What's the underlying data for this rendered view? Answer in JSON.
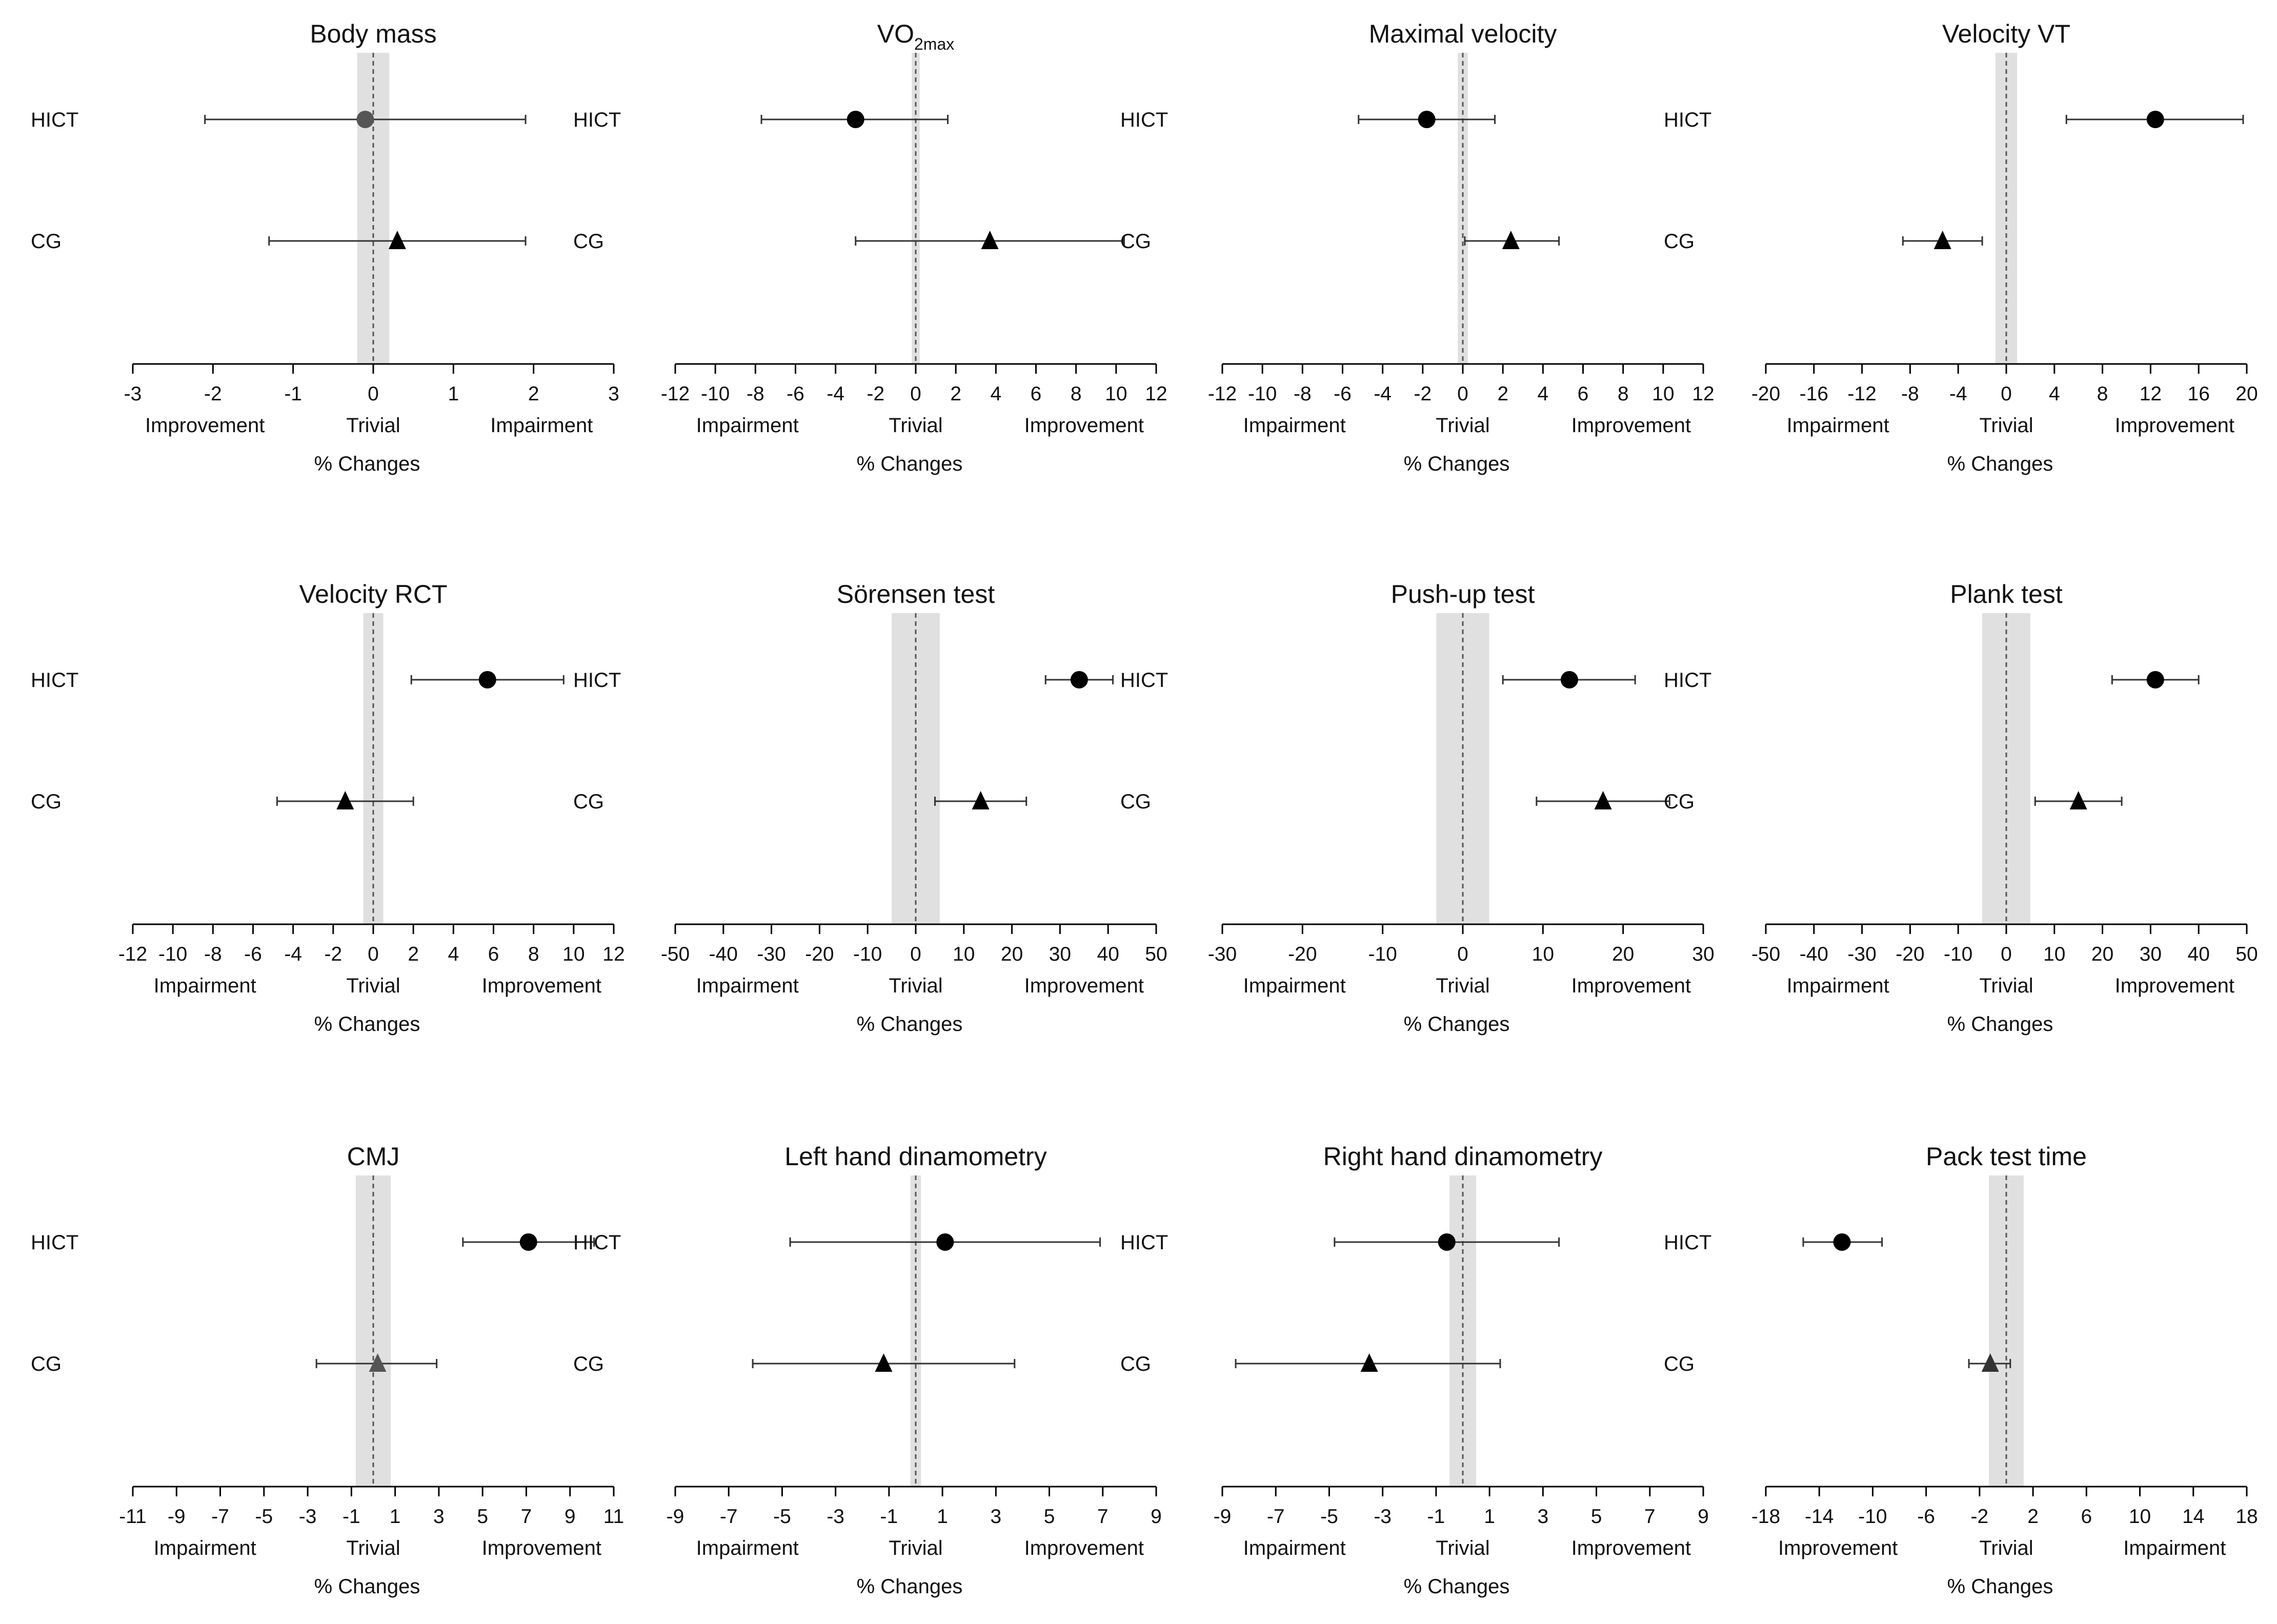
{
  "charts": [
    {
      "title": "Body mass",
      "title_sub": "",
      "xlim": [
        -3,
        3
      ],
      "ticks": [
        -3,
        -2,
        -1,
        0,
        1,
        2,
        3
      ],
      "trivial": [
        -0.2,
        0.2
      ],
      "regions": [
        "Improvement",
        "Trivial",
        "Impairment"
      ],
      "xlabel": "% Changes",
      "series": [
        {
          "group": "HICT",
          "mean": -0.1,
          "lo": -2.1,
          "hi": 1.9,
          "marker": "circle",
          "color": "#555555"
        },
        {
          "group": "CG",
          "mean": 0.3,
          "lo": -1.3,
          "hi": 1.9,
          "marker": "triangle",
          "color": "#000000"
        }
      ]
    },
    {
      "title": "VO",
      "title_sub": "2max",
      "xlim": [
        -12,
        12
      ],
      "ticks": [
        -12,
        -10,
        -8,
        -6,
        -4,
        -2,
        0,
        2,
        4,
        6,
        8,
        10,
        12
      ],
      "trivial": [
        -0.2,
        0.2
      ],
      "regions": [
        "Impairment",
        "Trivial",
        "Improvement"
      ],
      "xlabel": "% Changes",
      "series": [
        {
          "group": "HICT",
          "mean": -3.0,
          "lo": -7.7,
          "hi": 1.6,
          "marker": "circle",
          "color": "#000000"
        },
        {
          "group": "CG",
          "mean": 3.7,
          "lo": -3.0,
          "hi": 10.4,
          "marker": "triangle",
          "color": "#000000"
        }
      ]
    },
    {
      "title": "Maximal velocity",
      "title_sub": "",
      "xlim": [
        -12,
        12
      ],
      "ticks": [
        -12,
        -10,
        -8,
        -6,
        -4,
        -2,
        0,
        2,
        4,
        6,
        8,
        10,
        12
      ],
      "trivial": [
        -0.25,
        0.25
      ],
      "regions": [
        "Impairment",
        "Trivial",
        "Improvement"
      ],
      "xlabel": "% Changes",
      "series": [
        {
          "group": "HICT",
          "mean": -1.8,
          "lo": -5.2,
          "hi": 1.6,
          "marker": "circle",
          "color": "#000000"
        },
        {
          "group": "CG",
          "mean": 2.4,
          "lo": 0.1,
          "hi": 4.8,
          "marker": "triangle",
          "color": "#000000"
        }
      ]
    },
    {
      "title": "Velocity VT",
      "title_sub": "",
      "xlim": [
        -20,
        20
      ],
      "ticks": [
        -20,
        -16,
        -12,
        -8,
        -4,
        0,
        4,
        8,
        12,
        16,
        20
      ],
      "trivial": [
        -0.9,
        0.9
      ],
      "regions": [
        "Impairment",
        "Trivial",
        "Improvement"
      ],
      "xlabel": "% Changes",
      "series": [
        {
          "group": "HICT",
          "mean": 12.4,
          "lo": 5.0,
          "hi": 19.7,
          "marker": "circle",
          "color": "#000000"
        },
        {
          "group": "CG",
          "mean": -5.3,
          "lo": -8.6,
          "hi": -2.0,
          "marker": "triangle",
          "color": "#000000"
        }
      ]
    },
    {
      "title": "Velocity RCT",
      "title_sub": "",
      "xlim": [
        -12,
        12
      ],
      "ticks": [
        -12,
        -10,
        -8,
        -6,
        -4,
        -2,
        0,
        2,
        4,
        6,
        8,
        10,
        12
      ],
      "trivial": [
        -0.5,
        0.5
      ],
      "regions": [
        "Impairment",
        "Trivial",
        "Improvement"
      ],
      "xlabel": "% Changes",
      "series": [
        {
          "group": "HICT",
          "mean": 5.7,
          "lo": 1.9,
          "hi": 9.5,
          "marker": "circle",
          "color": "#000000"
        },
        {
          "group": "CG",
          "mean": -1.4,
          "lo": -4.8,
          "hi": 2.0,
          "marker": "triangle",
          "color": "#000000"
        }
      ]
    },
    {
      "title": "Sörensen test",
      "title_sub": "",
      "xlim": [
        -50,
        50
      ],
      "ticks": [
        -50,
        -40,
        -30,
        -20,
        -10,
        0,
        10,
        20,
        30,
        40,
        50
      ],
      "trivial": [
        -5,
        5
      ],
      "regions": [
        "Impairment",
        "Trivial",
        "Improvement"
      ],
      "xlabel": "% Changes",
      "series": [
        {
          "group": "HICT",
          "mean": 34.0,
          "lo": 27.0,
          "hi": 41.0,
          "marker": "circle",
          "color": "#000000"
        },
        {
          "group": "CG",
          "mean": 13.5,
          "lo": 4.0,
          "hi": 23.0,
          "marker": "triangle",
          "color": "#000000"
        }
      ]
    },
    {
      "title": "Push-up test",
      "title_sub": "",
      "xlim": [
        -30,
        30
      ],
      "ticks": [
        -30,
        -20,
        -10,
        0,
        10,
        20,
        30
      ],
      "trivial": [
        -3.3,
        3.3
      ],
      "regions": [
        "Impairment",
        "Trivial",
        "Improvement"
      ],
      "xlabel": "% Changes",
      "series": [
        {
          "group": "HICT",
          "mean": 13.3,
          "lo": 5.0,
          "hi": 21.5,
          "marker": "circle",
          "color": "#000000"
        },
        {
          "group": "CG",
          "mean": 17.5,
          "lo": 9.2,
          "hi": 25.8,
          "marker": "triangle",
          "color": "#000000"
        }
      ]
    },
    {
      "title": "Plank test",
      "title_sub": "",
      "xlim": [
        -50,
        50
      ],
      "ticks": [
        -50,
        -40,
        -30,
        -20,
        -10,
        0,
        10,
        20,
        30,
        40,
        50
      ],
      "trivial": [
        -5,
        5
      ],
      "regions": [
        "Impairment",
        "Trivial",
        "Improvement"
      ],
      "xlabel": "% Changes",
      "series": [
        {
          "group": "HICT",
          "mean": 31.0,
          "lo": 22.0,
          "hi": 40.0,
          "marker": "circle",
          "color": "#000000"
        },
        {
          "group": "CG",
          "mean": 15.0,
          "lo": 6.0,
          "hi": 24.0,
          "marker": "triangle",
          "color": "#000000"
        }
      ]
    },
    {
      "title": "CMJ",
      "title_sub": "",
      "xlim": [
        -11,
        11
      ],
      "ticks": [
        -11,
        -9,
        -7,
        -5,
        -3,
        -1,
        1,
        3,
        5,
        7,
        9,
        11
      ],
      "trivial": [
        -0.8,
        0.8
      ],
      "regions": [
        "Impairment",
        "Trivial",
        "Improvement"
      ],
      "xlabel": "% Changes",
      "series": [
        {
          "group": "HICT",
          "mean": 7.1,
          "lo": 4.1,
          "hi": 10.1,
          "marker": "circle",
          "color": "#000000"
        },
        {
          "group": "CG",
          "mean": 0.2,
          "lo": -2.6,
          "hi": 2.9,
          "marker": "triangle",
          "color": "#555555"
        }
      ]
    },
    {
      "title": "Left hand dinamometry",
      "title_sub": "",
      "xlim": [
        -9,
        9
      ],
      "ticks": [
        -9,
        -7,
        -5,
        -3,
        -1,
        1,
        3,
        5,
        7,
        9
      ],
      "trivial": [
        -0.2,
        0.2
      ],
      "regions": [
        "Impairment",
        "Trivial",
        "Improvement"
      ],
      "xlabel": "% Changes",
      "series": [
        {
          "group": "HICT",
          "mean": 1.1,
          "lo": -4.7,
          "hi": 6.9,
          "marker": "circle",
          "color": "#000000"
        },
        {
          "group": "CG",
          "mean": -1.2,
          "lo": -6.1,
          "hi": 3.7,
          "marker": "triangle",
          "color": "#000000"
        }
      ]
    },
    {
      "title": "Right hand dinamometry",
      "title_sub": "",
      "xlim": [
        -9,
        9
      ],
      "ticks": [
        -9,
        -7,
        -5,
        -3,
        -1,
        1,
        3,
        5,
        7,
        9
      ],
      "trivial": [
        -0.5,
        0.5
      ],
      "regions": [
        "Impairment",
        "Trivial",
        "Improvement"
      ],
      "xlabel": "% Changes",
      "series": [
        {
          "group": "HICT",
          "mean": -0.6,
          "lo": -4.8,
          "hi": 3.6,
          "marker": "circle",
          "color": "#000000"
        },
        {
          "group": "CG",
          "mean": -3.5,
          "lo": -8.5,
          "hi": 1.4,
          "marker": "triangle",
          "color": "#000000"
        }
      ]
    },
    {
      "title": "Pack test time",
      "title_sub": "",
      "xlim": [
        -18,
        18
      ],
      "ticks": [
        -18,
        -14,
        -10,
        -6,
        -2,
        2,
        6,
        10,
        14,
        18
      ],
      "trivial": [
        -1.3,
        1.3
      ],
      "regions": [
        "Improvement",
        "Trivial",
        "Impairment"
      ],
      "xlabel": "% Changes",
      "series": [
        {
          "group": "HICT",
          "mean": -12.3,
          "lo": -15.2,
          "hi": -9.3,
          "marker": "circle",
          "color": "#000000"
        },
        {
          "group": "CG",
          "mean": -1.2,
          "lo": -2.8,
          "hi": 0.3,
          "marker": "triangle",
          "color": "#333333"
        }
      ]
    }
  ],
  "colors": {
    "trivial_band": "#e0e0e0",
    "axis": "#000000",
    "errorbar": "#333333"
  }
}
